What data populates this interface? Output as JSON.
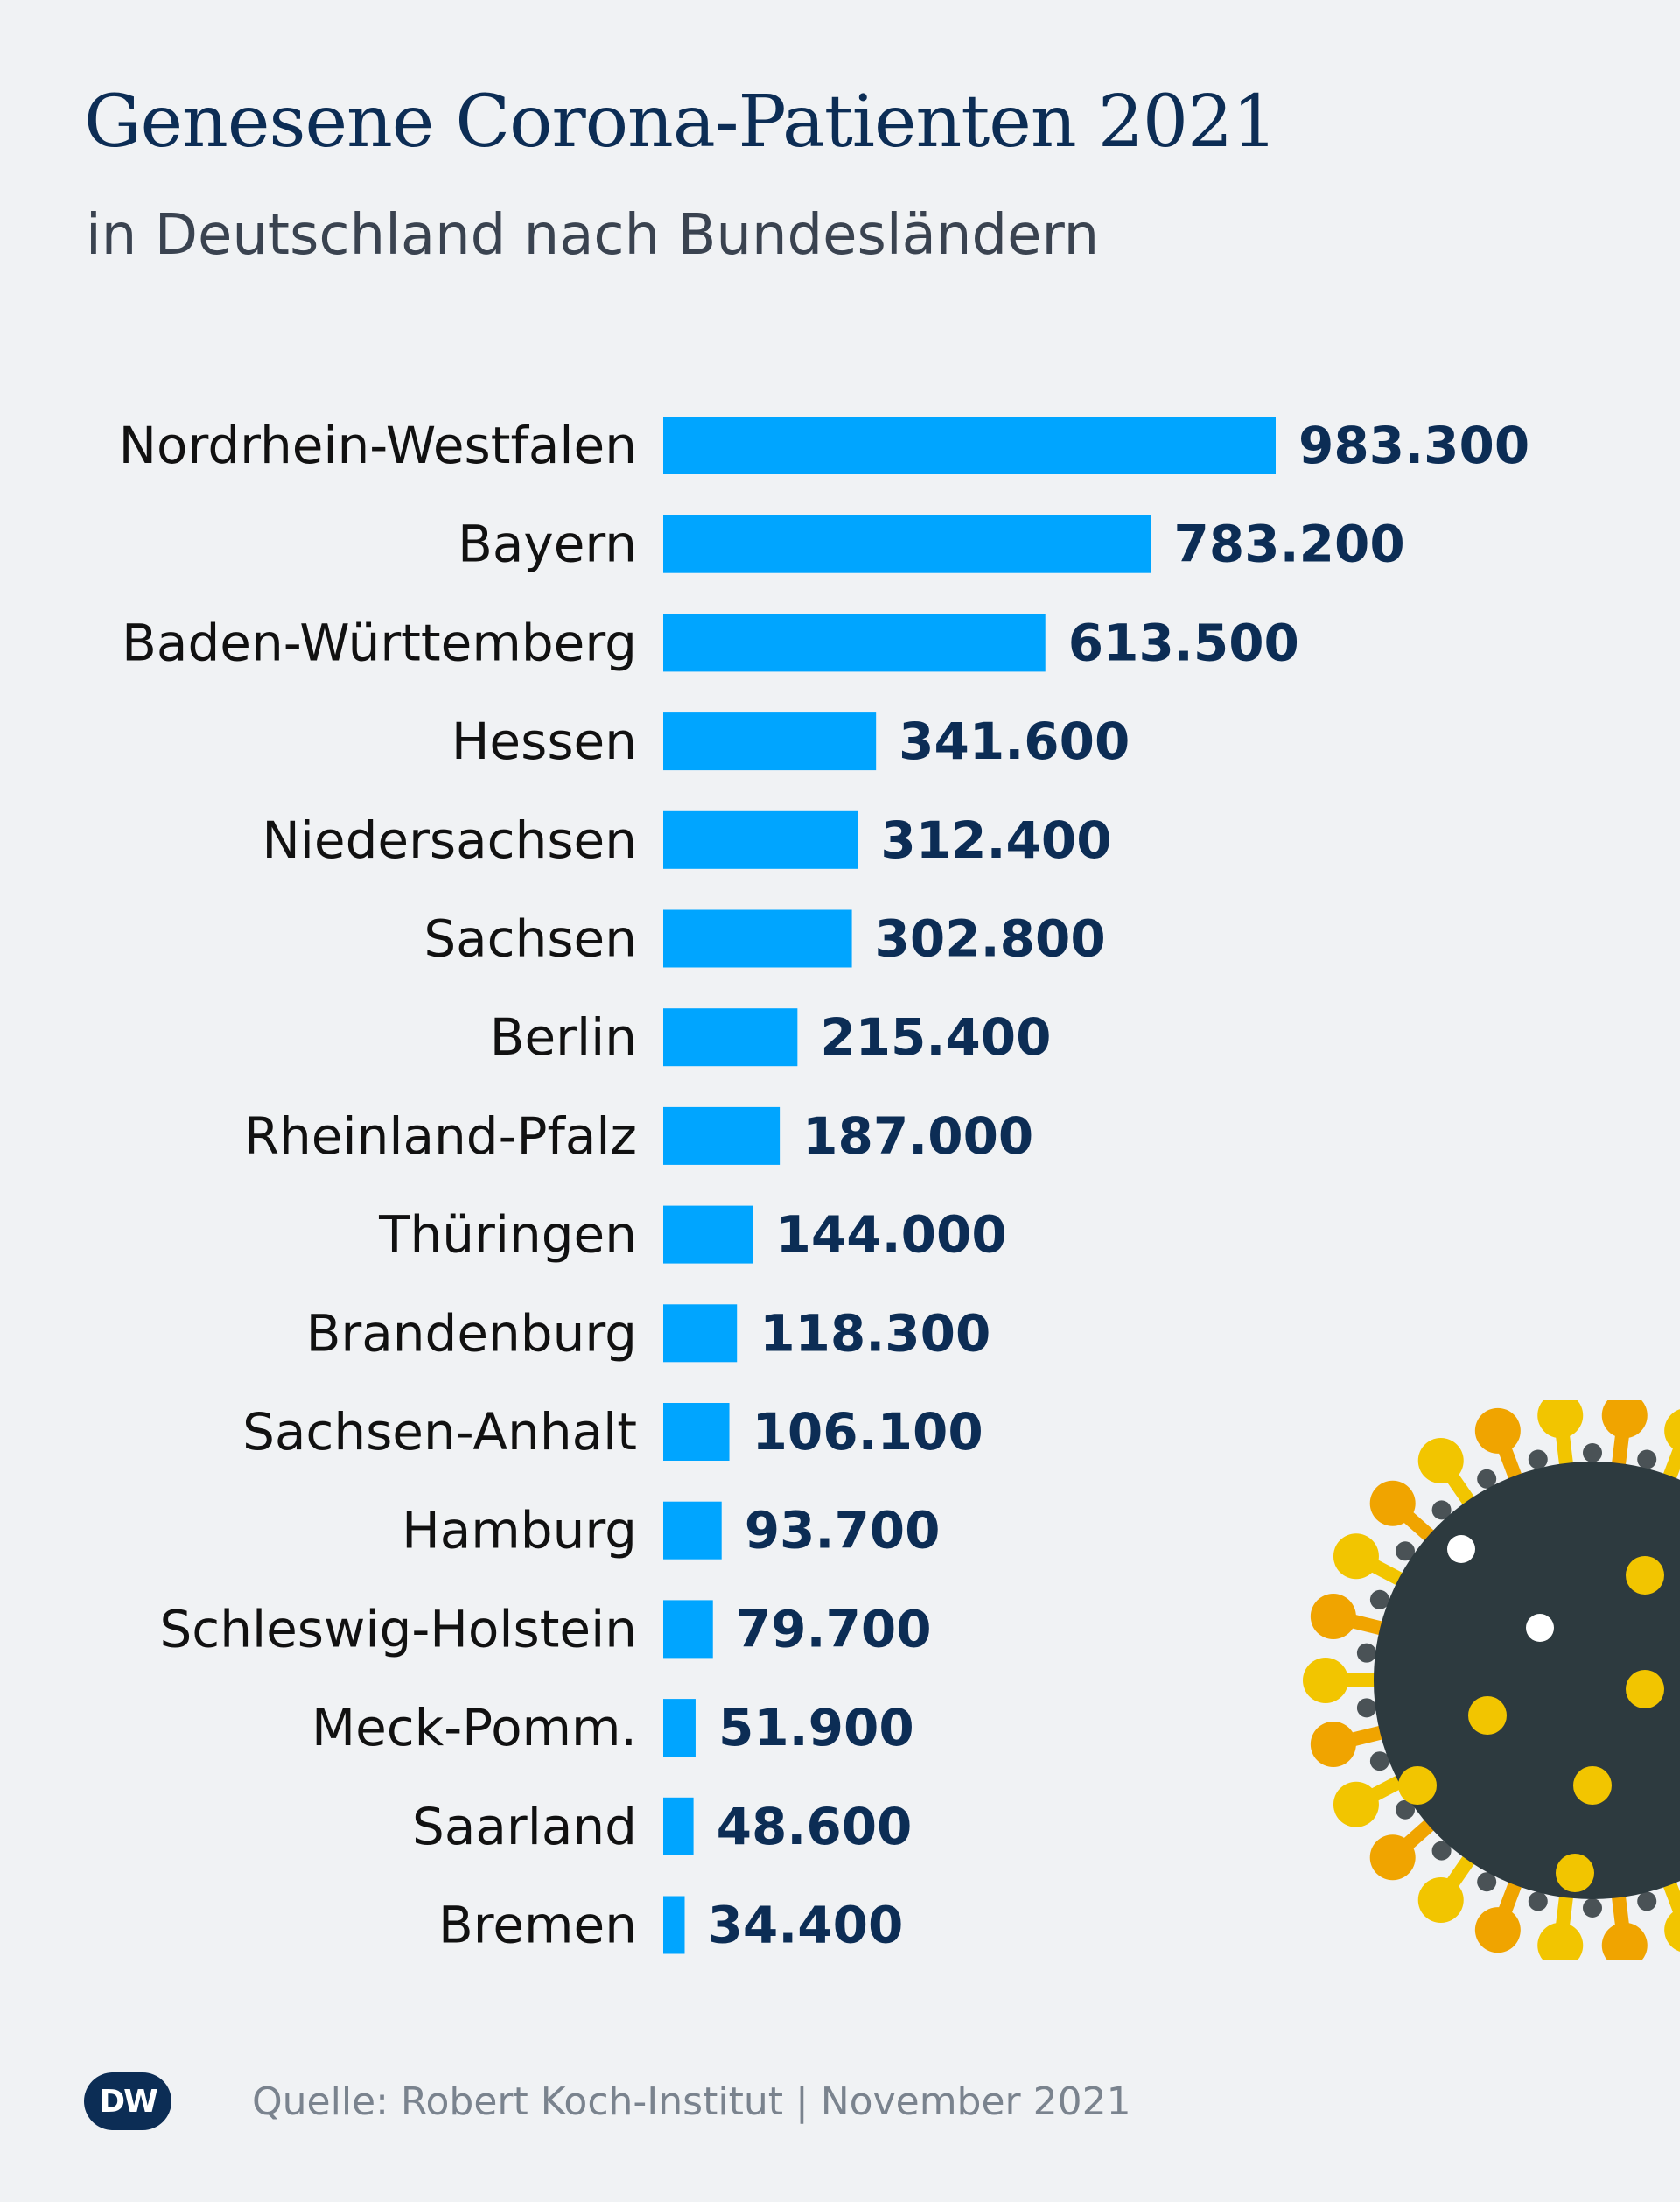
{
  "chart_data": {
    "type": "bar",
    "orientation": "horizontal",
    "title": "Genesene Corona-Patienten 2021",
    "subtitle": "in Deutschland nach Bundesländern",
    "categories": [
      "Nordrhein-Westfalen",
      "Bayern",
      "Baden-Württemberg",
      "Hessen",
      "Niedersachsen",
      "Sachsen",
      "Berlin",
      "Rheinland-Pfalz",
      "Thüringen",
      "Brandenburg",
      "Sachsen-Anhalt",
      "Hamburg",
      "Schleswig-Holstein",
      "Meck-Pomm.",
      "Saarland",
      "Bremen"
    ],
    "values": [
      983300,
      783200,
      613500,
      341600,
      312400,
      302800,
      215400,
      187000,
      144000,
      118300,
      106100,
      93700,
      79700,
      51900,
      48600,
      34400
    ],
    "value_labels": [
      "983.300",
      "783.200",
      "613.500",
      "341.600",
      "312.400",
      "302.800",
      "215.400",
      "187.000",
      "144.000",
      "118.300",
      "106.100",
      "93.700",
      "79.700",
      "51.900",
      "48.600",
      "34.400"
    ],
    "xlim": [
      0,
      983300
    ],
    "grid": false,
    "legend": "none",
    "bar_color": "#00a5ff"
  },
  "footer": {
    "logo_text": "DW",
    "source": "Quelle: Robert Koch-Institut | November 2021"
  },
  "illustration": {
    "icon": "coronavirus-icon"
  }
}
